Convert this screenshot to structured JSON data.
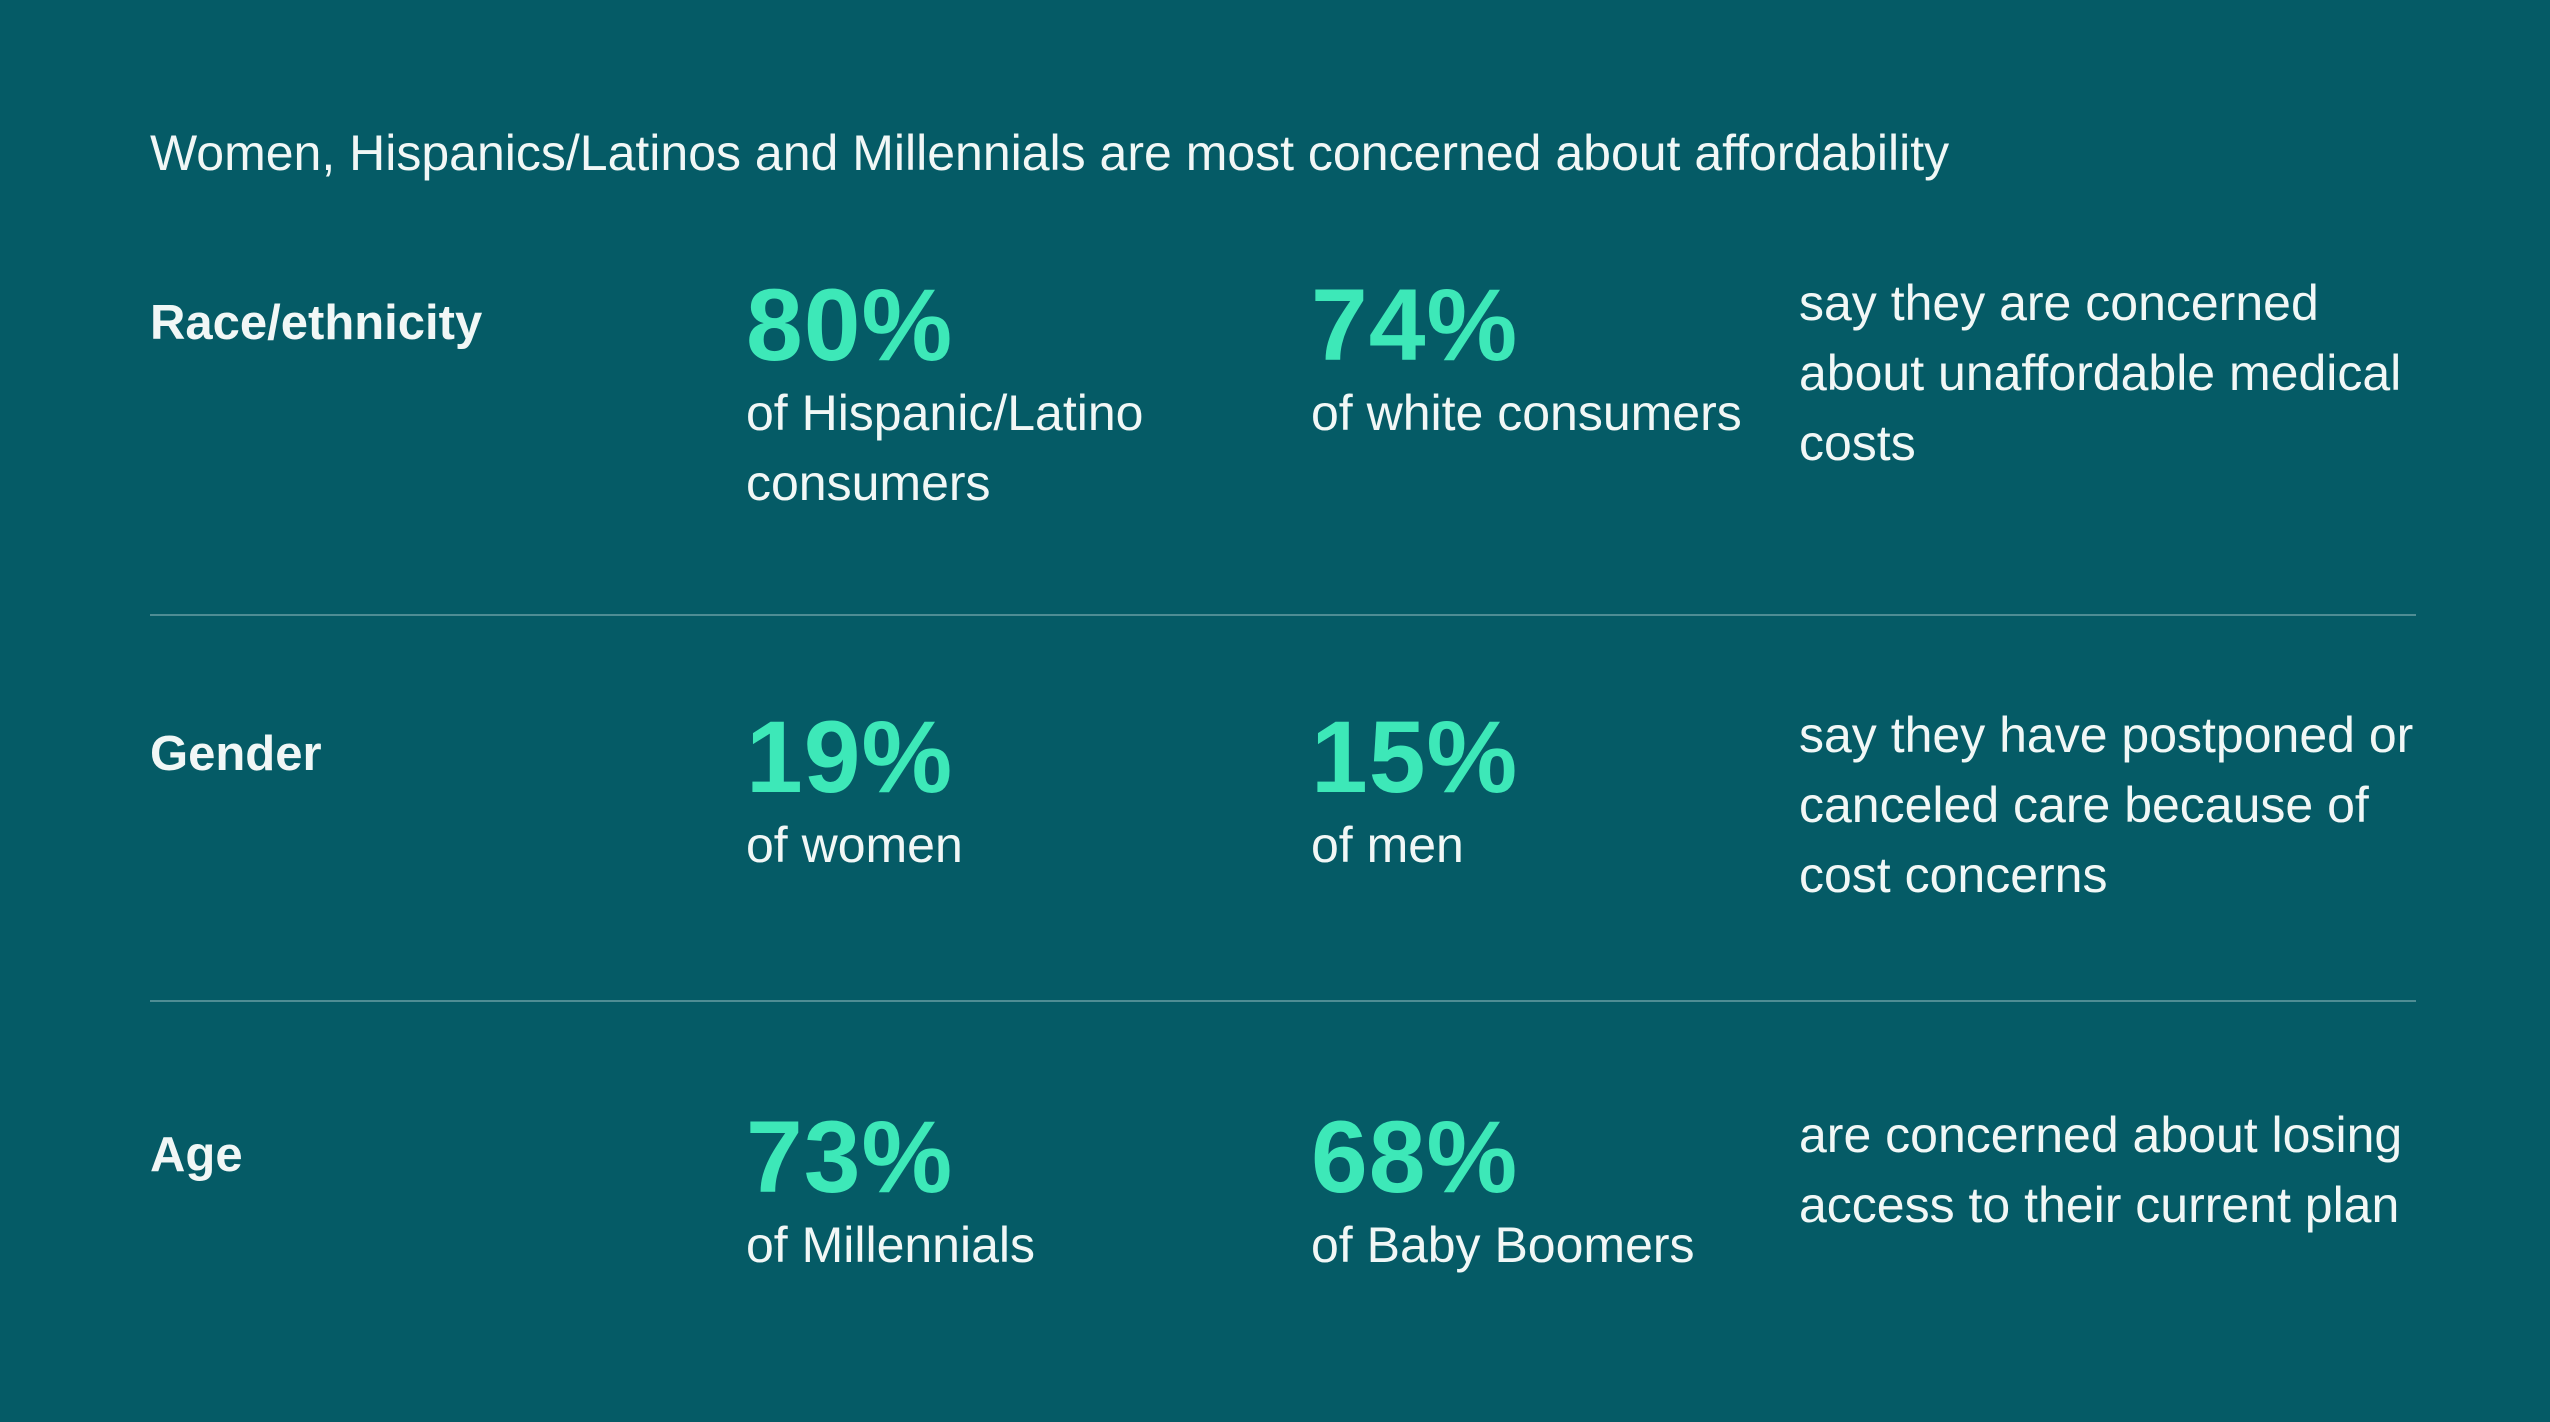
{
  "headline": "Women, Hispanics/Latinos and Millennials are most concerned about affordability",
  "rows": [
    {
      "category": "Race/ethnicity",
      "stat_a": {
        "value": "80%",
        "label": "of Hispanic/Latino consumers"
      },
      "stat_b": {
        "value": "74%",
        "label": "of white consumers"
      },
      "description": "say they are concerned about unaffordable medical costs"
    },
    {
      "category": "Gender",
      "stat_a": {
        "value": "19%",
        "label": "of women"
      },
      "stat_b": {
        "value": "15%",
        "label": "of men"
      },
      "description": "say they have postponed or canceled care because of cost concerns"
    },
    {
      "category": "Age",
      "stat_a": {
        "value": "73%",
        "label": "of Millennials"
      },
      "stat_b": {
        "value": "68%",
        "label": "of Baby Boomers"
      },
      "description": "are concerned about losing access to their current plan"
    }
  ],
  "colors": {
    "background": "#055b66",
    "accent": "#3de8b8",
    "text": "#f1f7f6",
    "divider": "#4f8d94"
  }
}
